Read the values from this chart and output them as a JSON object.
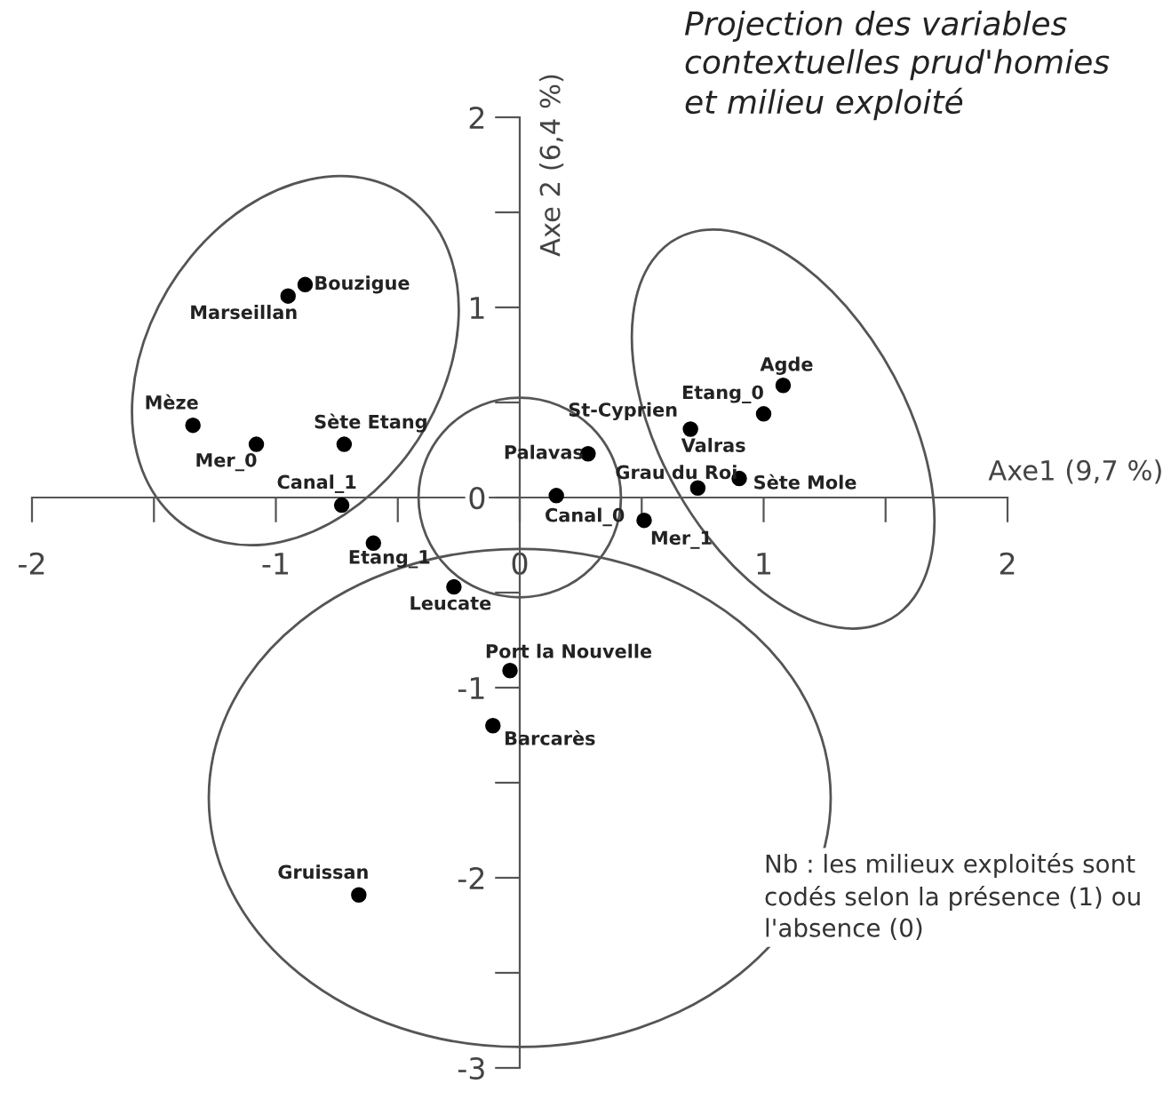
{
  "chart_data": {
    "type": "scatter",
    "title": "Projection des variables\ncontextuelles prud'homies\net milieu exploité",
    "xlabel": "Axe1 (9,7 %)",
    "ylabel": "Axe 2 (6,4 %)",
    "x": [
      -0.88,
      -0.95,
      -1.34,
      -1.08,
      -0.72,
      -0.73,
      -0.6,
      1.08,
      1.0,
      0.7,
      0.28,
      0.73,
      0.9,
      0.15,
      0.51,
      -0.27,
      -0.04,
      -0.11,
      -0.66
    ],
    "values": [
      1.12,
      1.06,
      0.38,
      0.28,
      0.28,
      -0.04,
      -0.24,
      0.59,
      0.44,
      0.36,
      0.23,
      0.05,
      0.1,
      0.01,
      -0.12,
      -0.47,
      -0.91,
      -1.2,
      -2.09
    ],
    "color": "#000000",
    "marker": "circle",
    "grid": false,
    "legend": false,
    "xlim": [
      -2,
      2
    ],
    "ylim": [
      -3,
      2
    ],
    "xticks": [
      -2,
      {
        "value": -1.5,
        "label": null
      },
      -1,
      {
        "value": -0.5,
        "label": null
      },
      0,
      {
        "value": 0.5,
        "label": null
      },
      1,
      {
        "value": 1.5,
        "label": null
      },
      2
    ],
    "yticks": [
      -3,
      {
        "value": -2.5,
        "label": null
      },
      -2,
      {
        "value": -1.5,
        "label": null
      },
      -1,
      {
        "value": -0.5,
        "label": null
      },
      0,
      {
        "value": 0.5,
        "label": null
      },
      1,
      {
        "value": 1.5,
        "label": null
      },
      2
    ],
    "annotations": [
      {
        "text": "Bouzigue",
        "x": -0.88,
        "y": 1.12
      },
      {
        "text": "Marseillan",
        "x": -0.95,
        "y": 1.06
      },
      {
        "text": "Mèze",
        "x": -1.34,
        "y": 0.38
      },
      {
        "text": "Mer_0",
        "x": -1.08,
        "y": 0.28
      },
      {
        "text": "Sète Etang",
        "x": -0.72,
        "y": 0.28
      },
      {
        "text": "Canal_1",
        "x": -0.73,
        "y": -0.04
      },
      {
        "text": "Etang_1",
        "x": -0.6,
        "y": -0.24
      },
      {
        "text": "Agde",
        "x": 1.08,
        "y": 0.59
      },
      {
        "text": "Etang_0",
        "x": 1.0,
        "y": 0.44
      },
      {
        "text": "St-Cyprien",
        "x": 0.7,
        "y": 0.36
      },
      {
        "text": "Valras",
        "x": 0.7,
        "y": 0.36
      },
      {
        "text": "Palavas",
        "x": 0.28,
        "y": 0.23
      },
      {
        "text": "Grau du Roi",
        "x": 0.73,
        "y": 0.05
      },
      {
        "text": "Sète Mole",
        "x": 0.9,
        "y": 0.1
      },
      {
        "text": "Canal_0",
        "x": 0.15,
        "y": 0.01
      },
      {
        "text": "Mer_1",
        "x": 0.51,
        "y": -0.12
      },
      {
        "text": "Leucate",
        "x": -0.27,
        "y": -0.47
      },
      {
        "text": "Port la Nouvelle",
        "x": -0.04,
        "y": -0.91
      },
      {
        "text": "Barcarès",
        "x": -0.11,
        "y": -1.2
      },
      {
        "text": "Gruissan",
        "x": -0.66,
        "y": -2.09
      },
      "Nb : les milieux exploités sont\ncodés selon la présence (1) ou\nl'absence (0)"
    ]
  }
}
